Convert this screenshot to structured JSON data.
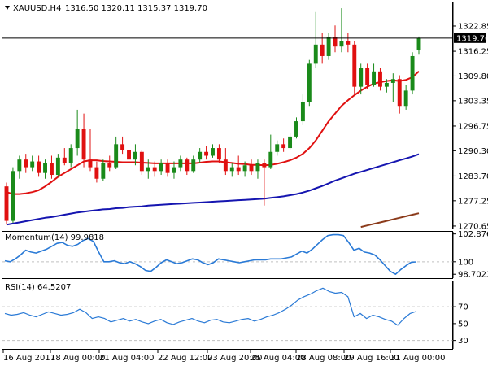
{
  "header": {
    "symbol": "XAUUSD,H4",
    "ohlc": "1316.50 1320.11 1315.37 1319.70"
  },
  "colors": {
    "bull": "#1a8a1a",
    "bear": "#e01010",
    "sma_fast": "#e01010",
    "sma_mid": "#1515b0",
    "sma_slow": "#8b3a1a",
    "indicator": "#2a7ad6",
    "grid": "#c0c0c0"
  },
  "chart_data": [
    {
      "type": "candlestick",
      "title": "XAUUSD,H4",
      "ylim": [
        1270,
        1329
      ],
      "y_ticks": [
        "1322.85",
        "1316.25",
        "1309.80",
        "1303.35",
        "1296.75",
        "1290.30",
        "1283.70",
        "1277.25",
        "1270.65"
      ],
      "current_price": "1319.70",
      "candles": [
        {
          "o": 1281.0,
          "h": 1282.0,
          "l": 1271.0,
          "c": 1272.0
        },
        {
          "o": 1272.0,
          "h": 1286.0,
          "l": 1271.5,
          "c": 1285.0
        },
        {
          "o": 1285.0,
          "h": 1289.0,
          "l": 1283.0,
          "c": 1288.0
        },
        {
          "o": 1288.0,
          "h": 1289.5,
          "l": 1284.5,
          "c": 1286.0
        },
        {
          "o": 1286.0,
          "h": 1289.0,
          "l": 1285.0,
          "c": 1287.5
        },
        {
          "o": 1287.5,
          "h": 1289.0,
          "l": 1283.5,
          "c": 1284.5
        },
        {
          "o": 1284.5,
          "h": 1288.0,
          "l": 1283.0,
          "c": 1287.0
        },
        {
          "o": 1287.0,
          "h": 1289.0,
          "l": 1283.0,
          "c": 1284.0
        },
        {
          "o": 1284.0,
          "h": 1289.5,
          "l": 1283.5,
          "c": 1288.5
        },
        {
          "o": 1288.5,
          "h": 1291.0,
          "l": 1286.5,
          "c": 1287.0
        },
        {
          "o": 1287.0,
          "h": 1292.0,
          "l": 1286.0,
          "c": 1291.0
        },
        {
          "o": 1291.0,
          "h": 1301.0,
          "l": 1289.0,
          "c": 1296.0
        },
        {
          "o": 1296.0,
          "h": 1300.0,
          "l": 1286.0,
          "c": 1288.0
        },
        {
          "o": 1288.0,
          "h": 1296.0,
          "l": 1285.0,
          "c": 1286.0
        },
        {
          "o": 1286.0,
          "h": 1287.5,
          "l": 1282.0,
          "c": 1283.0
        },
        {
          "o": 1283.0,
          "h": 1288.0,
          "l": 1282.5,
          "c": 1287.0
        },
        {
          "o": 1287.0,
          "h": 1289.0,
          "l": 1285.0,
          "c": 1286.0
        },
        {
          "o": 1286.0,
          "h": 1294.0,
          "l": 1285.5,
          "c": 1292.0
        },
        {
          "o": 1292.0,
          "h": 1294.0,
          "l": 1289.5,
          "c": 1290.5
        },
        {
          "o": 1290.5,
          "h": 1292.0,
          "l": 1287.0,
          "c": 1288.0
        },
        {
          "o": 1288.0,
          "h": 1292.0,
          "l": 1286.5,
          "c": 1290.0
        },
        {
          "o": 1290.0,
          "h": 1290.5,
          "l": 1284.0,
          "c": 1285.0
        },
        {
          "o": 1285.0,
          "h": 1288.0,
          "l": 1283.0,
          "c": 1286.0
        },
        {
          "o": 1286.0,
          "h": 1287.5,
          "l": 1283.5,
          "c": 1285.0
        },
        {
          "o": 1285.0,
          "h": 1288.0,
          "l": 1284.0,
          "c": 1287.0
        },
        {
          "o": 1287.0,
          "h": 1288.0,
          "l": 1283.5,
          "c": 1284.5
        },
        {
          "o": 1284.5,
          "h": 1287.5,
          "l": 1283.0,
          "c": 1286.0
        },
        {
          "o": 1286.0,
          "h": 1289.0,
          "l": 1285.0,
          "c": 1288.0
        },
        {
          "o": 1288.0,
          "h": 1288.5,
          "l": 1284.0,
          "c": 1285.0
        },
        {
          "o": 1285.0,
          "h": 1289.0,
          "l": 1284.5,
          "c": 1288.0
        },
        {
          "o": 1288.0,
          "h": 1291.0,
          "l": 1287.0,
          "c": 1290.0
        },
        {
          "o": 1290.0,
          "h": 1291.5,
          "l": 1288.0,
          "c": 1289.0
        },
        {
          "o": 1289.0,
          "h": 1292.0,
          "l": 1288.5,
          "c": 1291.0
        },
        {
          "o": 1291.0,
          "h": 1292.0,
          "l": 1287.0,
          "c": 1288.0
        },
        {
          "o": 1288.0,
          "h": 1291.0,
          "l": 1284.0,
          "c": 1285.0
        },
        {
          "o": 1285.0,
          "h": 1287.0,
          "l": 1283.5,
          "c": 1286.0
        },
        {
          "o": 1286.0,
          "h": 1289.0,
          "l": 1284.0,
          "c": 1285.0
        },
        {
          "o": 1285.0,
          "h": 1287.5,
          "l": 1283.5,
          "c": 1286.5
        },
        {
          "o": 1286.5,
          "h": 1288.0,
          "l": 1284.0,
          "c": 1285.0
        },
        {
          "o": 1285.0,
          "h": 1288.0,
          "l": 1283.0,
          "c": 1287.0
        },
        {
          "o": 1287.0,
          "h": 1288.0,
          "l": 1276.0,
          "c": 1286.0
        },
        {
          "o": 1286.0,
          "h": 1294.5,
          "l": 1285.5,
          "c": 1290.0
        },
        {
          "o": 1290.0,
          "h": 1293.0,
          "l": 1289.0,
          "c": 1292.0
        },
        {
          "o": 1292.0,
          "h": 1293.5,
          "l": 1290.0,
          "c": 1291.0
        },
        {
          "o": 1291.0,
          "h": 1295.0,
          "l": 1290.5,
          "c": 1294.0
        },
        {
          "o": 1294.0,
          "h": 1299.0,
          "l": 1293.5,
          "c": 1298.0
        },
        {
          "o": 1298.0,
          "h": 1305.0,
          "l": 1297.0,
          "c": 1303.0
        },
        {
          "o": 1303.0,
          "h": 1314.0,
          "l": 1302.0,
          "c": 1313.0
        },
        {
          "o": 1313.0,
          "h": 1326.5,
          "l": 1312.0,
          "c": 1318.0
        },
        {
          "o": 1318.0,
          "h": 1321.0,
          "l": 1313.0,
          "c": 1315.0
        },
        {
          "o": 1315.0,
          "h": 1321.0,
          "l": 1314.0,
          "c": 1320.0
        },
        {
          "o": 1320.0,
          "h": 1323.0,
          "l": 1316.0,
          "c": 1317.5
        },
        {
          "o": 1317.5,
          "h": 1327.5,
          "l": 1316.0,
          "c": 1319.0
        },
        {
          "o": 1319.0,
          "h": 1321.0,
          "l": 1316.0,
          "c": 1318.0
        },
        {
          "o": 1318.0,
          "h": 1319.0,
          "l": 1305.0,
          "c": 1307.0
        },
        {
          "o": 1307.0,
          "h": 1313.0,
          "l": 1305.0,
          "c": 1312.0
        },
        {
          "o": 1312.0,
          "h": 1313.0,
          "l": 1306.5,
          "c": 1307.5
        },
        {
          "o": 1307.5,
          "h": 1313.0,
          "l": 1307.0,
          "c": 1311.0
        },
        {
          "o": 1311.0,
          "h": 1312.0,
          "l": 1306.0,
          "c": 1307.0
        },
        {
          "o": 1307.0,
          "h": 1309.0,
          "l": 1305.5,
          "c": 1308.0
        },
        {
          "o": 1308.0,
          "h": 1310.5,
          "l": 1303.0,
          "c": 1309.0
        },
        {
          "o": 1309.0,
          "h": 1310.0,
          "l": 1300.0,
          "c": 1302.0
        },
        {
          "o": 1302.0,
          "h": 1307.5,
          "l": 1301.0,
          "c": 1306.0
        },
        {
          "o": 1306.0,
          "h": 1316.0,
          "l": 1305.0,
          "c": 1315.0
        },
        {
          "o": 1316.5,
          "h": 1320.11,
          "l": 1315.37,
          "c": 1319.7
        }
      ],
      "sma_fast": [
        1279.5,
        1279.0,
        1279.0,
        1279.2,
        1279.5,
        1280.0,
        1281.0,
        1282.2,
        1283.5,
        1284.5,
        1285.5,
        1286.5,
        1287.5,
        1287.8,
        1287.8,
        1287.6,
        1287.5,
        1287.4,
        1287.3,
        1287.3,
        1287.3,
        1287.2,
        1287.1,
        1287.0,
        1287.0,
        1287.0,
        1287.0,
        1287.0,
        1287.0,
        1287.0,
        1287.2,
        1287.4,
        1287.5,
        1287.5,
        1287.3,
        1287.1,
        1286.9,
        1286.8,
        1286.6,
        1286.6,
        1286.5,
        1286.6,
        1286.9,
        1287.3,
        1287.8,
        1288.5,
        1289.5,
        1291.0,
        1293.0,
        1295.5,
        1298.0,
        1300.0,
        1302.0,
        1303.5,
        1304.8,
        1306.0,
        1307.0,
        1307.8,
        1308.2,
        1308.5,
        1308.7,
        1308.5,
        1308.8,
        1309.5,
        1311.0
      ],
      "sma_mid": [
        1271.0,
        1271.3,
        1271.6,
        1271.9,
        1272.2,
        1272.5,
        1272.8,
        1273.0,
        1273.3,
        1273.6,
        1273.9,
        1274.2,
        1274.4,
        1274.6,
        1274.8,
        1275.0,
        1275.1,
        1275.3,
        1275.4,
        1275.6,
        1275.7,
        1275.8,
        1276.0,
        1276.1,
        1276.2,
        1276.3,
        1276.4,
        1276.5,
        1276.6,
        1276.7,
        1276.8,
        1276.9,
        1277.0,
        1277.1,
        1277.2,
        1277.3,
        1277.4,
        1277.5,
        1277.6,
        1277.7,
        1277.8,
        1278.0,
        1278.2,
        1278.4,
        1278.7,
        1279.0,
        1279.4,
        1279.9,
        1280.5,
        1281.1,
        1281.8,
        1282.5,
        1283.1,
        1283.7,
        1284.3,
        1284.8,
        1285.3,
        1285.8,
        1286.3,
        1286.8,
        1287.3,
        1287.8,
        1288.3,
        1288.8,
        1289.4
      ],
      "sma_slow": [
        null,
        null,
        null,
        null,
        null,
        null,
        null,
        null,
        null,
        null,
        null,
        null,
        null,
        null,
        null,
        null,
        null,
        null,
        null,
        null,
        null,
        null,
        null,
        null,
        null,
        null,
        null,
        null,
        null,
        null,
        null,
        null,
        null,
        null,
        null,
        null,
        null,
        null,
        null,
        null,
        null,
        null,
        null,
        null,
        null,
        null,
        null,
        null,
        null,
        null,
        null,
        null,
        null,
        null,
        null,
        1270.4,
        1270.8,
        1271.2,
        1271.6,
        1272.0,
        1272.4,
        1272.8,
        1273.2,
        1273.6,
        1274.0
      ]
    },
    {
      "type": "line",
      "title": "Momentum(14) 99.9818",
      "ylim": [
        98.3,
        103.1
      ],
      "y_ticks": [
        "102.8767",
        "100",
        "98.7023"
      ],
      "reference_line": 100,
      "values": [
        100.1,
        100.0,
        100.3,
        100.7,
        101.2,
        101.0,
        100.9,
        101.1,
        101.3,
        101.6,
        101.9,
        102.0,
        101.7,
        101.6,
        101.8,
        102.2,
        102.4,
        102.1,
        101.0,
        100.0,
        100.0,
        100.1,
        99.9,
        99.8,
        100.0,
        99.8,
        99.5,
        99.1,
        99.0,
        99.4,
        99.9,
        100.2,
        100.0,
        99.8,
        99.9,
        100.1,
        100.3,
        100.2,
        99.9,
        99.7,
        99.9,
        100.3,
        100.2,
        100.1,
        100.0,
        99.9,
        100.0,
        100.1,
        100.2,
        100.2,
        100.2,
        100.3,
        100.3,
        100.3,
        100.4,
        100.5,
        100.8,
        101.1,
        100.9,
        101.3,
        101.8,
        102.3,
        102.7,
        102.8,
        102.8,
        102.7,
        102.0,
        101.2,
        101.4,
        101.0,
        100.9,
        100.7,
        100.2,
        99.6,
        99.0,
        98.7,
        99.2,
        99.6,
        99.95,
        99.98
      ]
    },
    {
      "type": "line",
      "title": "RSI(14) 64.5207",
      "ylim": [
        20,
        100
      ],
      "y_ticks": [
        "70",
        "50",
        "30"
      ],
      "levels": [
        70,
        30
      ],
      "values": [
        62,
        60,
        61,
        63,
        60,
        58,
        61,
        64,
        62,
        60,
        61,
        63,
        67,
        63,
        56,
        58,
        56,
        52,
        54,
        56,
        53,
        55,
        52,
        50,
        53,
        55,
        51,
        49,
        52,
        54,
        56,
        53,
        51,
        54,
        55,
        52,
        51,
        53,
        55,
        56,
        53,
        55,
        58,
        60,
        63,
        67,
        72,
        78,
        82,
        85,
        89,
        92,
        88,
        86,
        87,
        82,
        58,
        62,
        56,
        60,
        58,
        55,
        53,
        48,
        56,
        62,
        64.52
      ]
    }
  ],
  "x_axis": {
    "labels": [
      "16 Aug 2017",
      "18 Aug 00:00",
      "21 Aug 04:00",
      "22 Aug 12:00",
      "23 Aug 20:00",
      "25 Aug 04:00",
      "28 Aug 08:00",
      "29 Aug 16:00",
      "31 Aug 00:00"
    ]
  }
}
